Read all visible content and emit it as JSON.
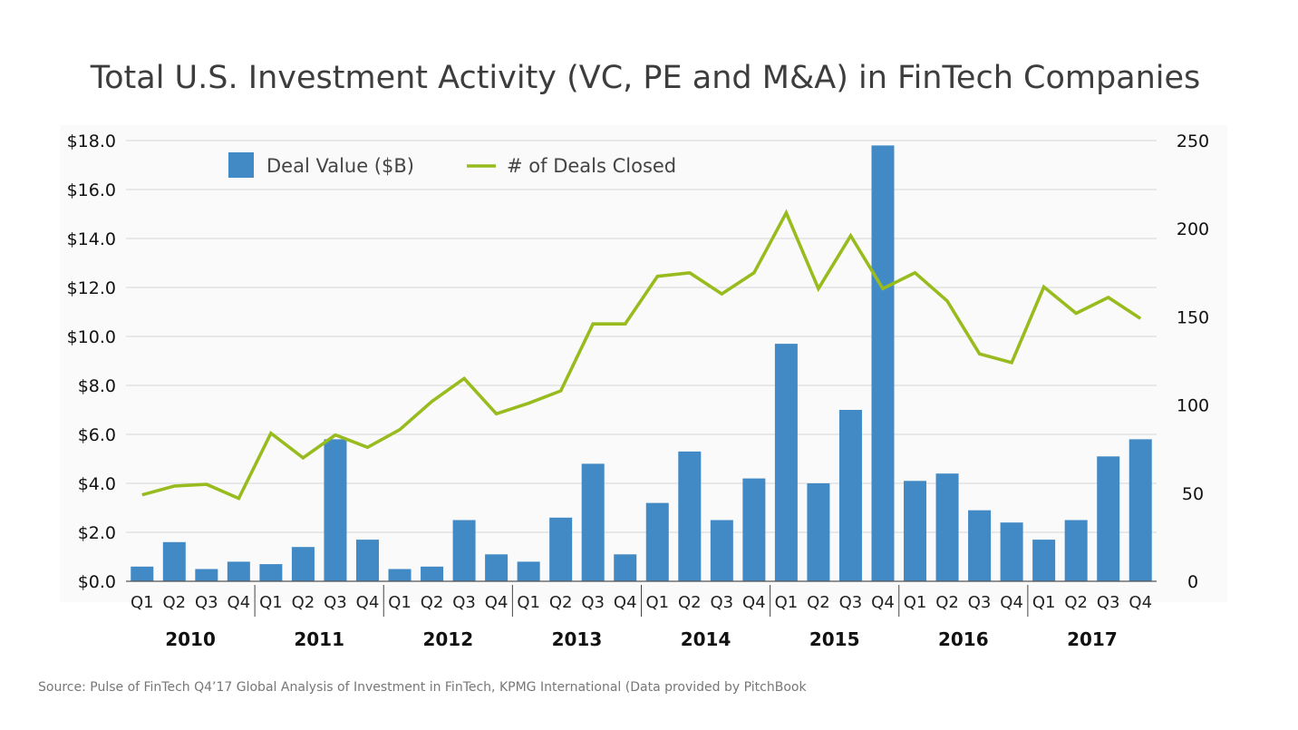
{
  "chart_data": {
    "type": "bar",
    "title": "Total U.S. Investment Activity (VC, PE and M&A) in FinTech Companies",
    "source": "Source: Pulse of FinTech Q4’17 Global Analysis of Investment in FinTech, KPMG International  (Data provided by PitchBook",
    "quarters": [
      "Q1",
      "Q2",
      "Q3",
      "Q4"
    ],
    "years": [
      "2010",
      "2011",
      "2012",
      "2013",
      "2014",
      "2015",
      "2016",
      "2017"
    ],
    "categories": [
      "Q1 2010",
      "Q2 2010",
      "Q3 2010",
      "Q4 2010",
      "Q1 2011",
      "Q2 2011",
      "Q3 2011",
      "Q4 2011",
      "Q1 2012",
      "Q2 2012",
      "Q3 2012",
      "Q4 2012",
      "Q1 2013",
      "Q2 2013",
      "Q3 2013",
      "Q4 2013",
      "Q1 2014",
      "Q2 2014",
      "Q3 2014",
      "Q4 2014",
      "Q1 2015",
      "Q2 2015",
      "Q3 2015",
      "Q4 2015",
      "Q1 2016",
      "Q2 2016",
      "Q3 2016",
      "Q4 2016",
      "Q1 2017",
      "Q2 2017",
      "Q3 2017",
      "Q4 2017"
    ],
    "series": [
      {
        "name": "Deal Value ($B)",
        "type": "bar",
        "axis": "left",
        "color": "#418ac5",
        "values": [
          0.6,
          1.6,
          0.5,
          0.8,
          0.7,
          1.4,
          5.8,
          1.7,
          0.5,
          0.6,
          2.5,
          1.1,
          0.8,
          2.6,
          4.8,
          1.1,
          3.2,
          5.3,
          2.5,
          4.2,
          9.7,
          4.0,
          7.0,
          17.8,
          4.1,
          4.4,
          2.9,
          2.4,
          1.7,
          2.5,
          5.1,
          5.8
        ]
      },
      {
        "name": "# of Deals Closed",
        "type": "line",
        "axis": "right",
        "color": "#98bb1e",
        "values": [
          49,
          54,
          55,
          47,
          84,
          70,
          83,
          76,
          86,
          102,
          115,
          95,
          101,
          108,
          146,
          146,
          173,
          175,
          163,
          175,
          209,
          166,
          196,
          166,
          175,
          159,
          129,
          124,
          167,
          152,
          161,
          149
        ]
      }
    ],
    "y_left": {
      "min": 0,
      "max": 18,
      "step": 2,
      "tick_labels": [
        "$0.0",
        "$2.0",
        "$4.0",
        "$6.0",
        "$8.0",
        "$10.0",
        "$12.0",
        "$14.0",
        "$16.0",
        "$18.0"
      ]
    },
    "y_right": {
      "min": 0,
      "max": 250,
      "step": 50,
      "tick_labels": [
        "0",
        "50",
        "100",
        "150",
        "200",
        "250"
      ]
    },
    "grid": true,
    "legend_position": "top-left"
  }
}
